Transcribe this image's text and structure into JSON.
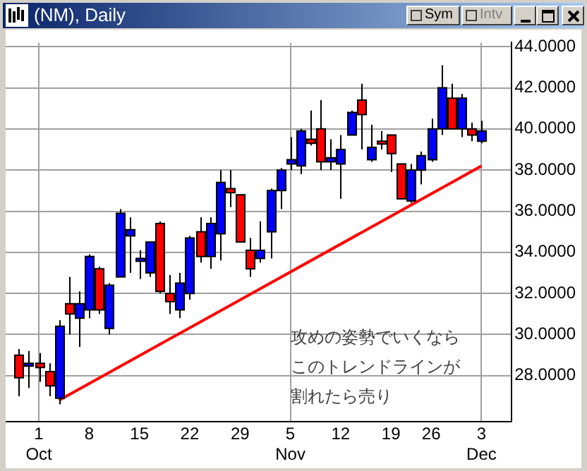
{
  "chart_data": {
    "type": "candlestick",
    "title": "(NM), Daily",
    "categories": [
      null,
      null,
      "1\nOct",
      null,
      null,
      null,
      null,
      "8",
      null,
      null,
      null,
      null,
      "15",
      null,
      null,
      null,
      null,
      "22",
      null,
      null,
      null,
      null,
      "29",
      null,
      null,
      null,
      null,
      "5\nNov",
      null,
      null,
      null,
      null,
      "12",
      null,
      null,
      null,
      null,
      "19",
      null,
      null,
      null,
      "26",
      null,
      null,
      null,
      null,
      "3\nDec"
    ],
    "ohlc": [
      [
        29.0,
        29.3,
        27.0,
        27.9
      ],
      [
        28.5,
        29.2,
        27.4,
        28.6
      ],
      [
        28.6,
        29.1,
        27.7,
        28.4
      ],
      [
        28.2,
        28.6,
        27.0,
        27.5
      ],
      [
        26.9,
        30.7,
        26.6,
        30.4
      ],
      [
        31.5,
        32.8,
        30.0,
        31.0
      ],
      [
        30.8,
        32.1,
        29.4,
        31.5
      ],
      [
        31.2,
        33.9,
        30.8,
        33.8
      ],
      [
        33.2,
        33.3,
        31.0,
        31.2
      ],
      [
        30.3,
        32.5,
        30.0,
        32.4
      ],
      [
        32.8,
        36.1,
        32.8,
        35.9
      ],
      [
        34.8,
        35.7,
        33.0,
        35.1
      ],
      [
        33.6,
        34.1,
        32.7,
        33.7
      ],
      [
        33.0,
        34.5,
        32.8,
        34.5
      ],
      [
        35.4,
        35.5,
        32.0,
        32.1
      ],
      [
        32.0,
        32.9,
        31.0,
        31.6
      ],
      [
        31.2,
        33.0,
        30.8,
        32.5
      ],
      [
        32.0,
        34.8,
        31.7,
        34.7
      ],
      [
        35.0,
        35.7,
        33.5,
        33.8
      ],
      [
        33.8,
        35.7,
        33.2,
        35.4
      ],
      [
        34.9,
        38.0,
        33.6,
        37.4
      ],
      [
        37.1,
        38.0,
        36.2,
        36.9
      ],
      [
        36.8,
        36.8,
        34.5,
        34.5
      ],
      [
        34.1,
        34.7,
        32.8,
        33.2
      ],
      [
        33.7,
        35.5,
        33.5,
        34.1
      ],
      [
        35.0,
        37.1,
        33.7,
        37.0
      ],
      [
        37.0,
        38.1,
        36.1,
        38.0
      ],
      [
        38.3,
        39.6,
        38.0,
        38.5
      ],
      [
        38.2,
        40.0,
        37.8,
        39.9
      ],
      [
        39.5,
        40.9,
        39.2,
        39.3
      ],
      [
        40.0,
        41.4,
        38.0,
        38.4
      ],
      [
        38.4,
        39.5,
        38.0,
        38.6
      ],
      [
        38.3,
        39.7,
        36.6,
        39.0
      ],
      [
        39.7,
        40.9,
        39.7,
        40.8
      ],
      [
        41.4,
        42.2,
        39.0,
        40.7
      ],
      [
        38.5,
        40.2,
        38.4,
        39.1
      ],
      [
        39.4,
        39.9,
        39.0,
        39.3
      ],
      [
        39.7,
        39.7,
        37.9,
        38.8
      ],
      [
        38.3,
        38.3,
        36.6,
        36.6
      ],
      [
        36.5,
        38.3,
        36.4,
        38.0
      ],
      [
        38.0,
        38.9,
        37.3,
        38.7
      ],
      [
        38.5,
        40.5,
        38.4,
        40.0
      ],
      [
        40.0,
        43.1,
        39.7,
        42.0
      ],
      [
        41.5,
        42.2,
        40.0,
        40.0
      ],
      [
        40.0,
        41.7,
        39.6,
        41.5
      ],
      [
        40.0,
        40.3,
        39.4,
        39.7
      ],
      [
        39.4,
        40.4,
        39.3,
        39.9
      ]
    ],
    "colors": [
      "#ff0000",
      "#0000ff",
      "#ff0000",
      "#ff0000",
      "#0000ff",
      "#ff0000",
      "#0000ff",
      "#0000ff",
      "#ff0000",
      "#0000ff",
      "#0000ff",
      "#0000ff",
      "#0000ff",
      "#0000ff",
      "#ff0000",
      "#ff0000",
      "#0000ff",
      "#0000ff",
      "#ff0000",
      "#0000ff",
      "#0000ff",
      "#ff0000",
      "#ff0000",
      "#ff0000",
      "#0000ff",
      "#0000ff",
      "#0000ff",
      "#0000ff",
      "#0000ff",
      "#ff0000",
      "#ff0000",
      "#0000ff",
      "#0000ff",
      "#0000ff",
      "#ff0000",
      "#0000ff",
      "#ff0000",
      "#ff0000",
      "#ff0000",
      "#0000ff",
      "#0000ff",
      "#0000ff",
      "#0000ff",
      "#ff0000",
      "#0000ff",
      "#ff0000",
      "#0000ff"
    ],
    "series": [
      {
        "type": "line",
        "color": "#ff0000",
        "values": [
          null,
          null,
          null,
          null,
          26.8,
          null,
          null,
          null,
          null,
          null,
          null,
          null,
          null,
          null,
          null,
          null,
          null,
          null,
          null,
          null,
          null,
          null,
          null,
          null,
          null,
          null,
          null,
          null,
          null,
          null,
          null,
          null,
          null,
          null,
          null,
          null,
          null,
          null,
          null,
          null,
          null,
          null,
          null,
          null,
          null,
          null,
          38.2
        ]
      }
    ],
    "ylim": [
      25.75,
      44.2
    ],
    "yticks": [
      {
        "value": 28,
        "label": "28.0000"
      },
      {
        "value": 30,
        "label": "30.0000"
      },
      {
        "value": 32,
        "label": "32.0000"
      },
      {
        "value": 34,
        "label": "34.0000"
      },
      {
        "value": 36,
        "label": "36.0000"
      },
      {
        "value": 38,
        "label": "38.0000"
      },
      {
        "value": 40,
        "label": "40.0000"
      },
      {
        "value": 42,
        "label": "42.0000"
      },
      {
        "value": 44,
        "label": "44.0000"
      }
    ],
    "grid": true,
    "legend": false,
    "annotations": [
      "攻めの姿勢でいくなら",
      "このトレンドラインが",
      "割れたら売り",
      "Sym",
      "Intv"
    ]
  }
}
